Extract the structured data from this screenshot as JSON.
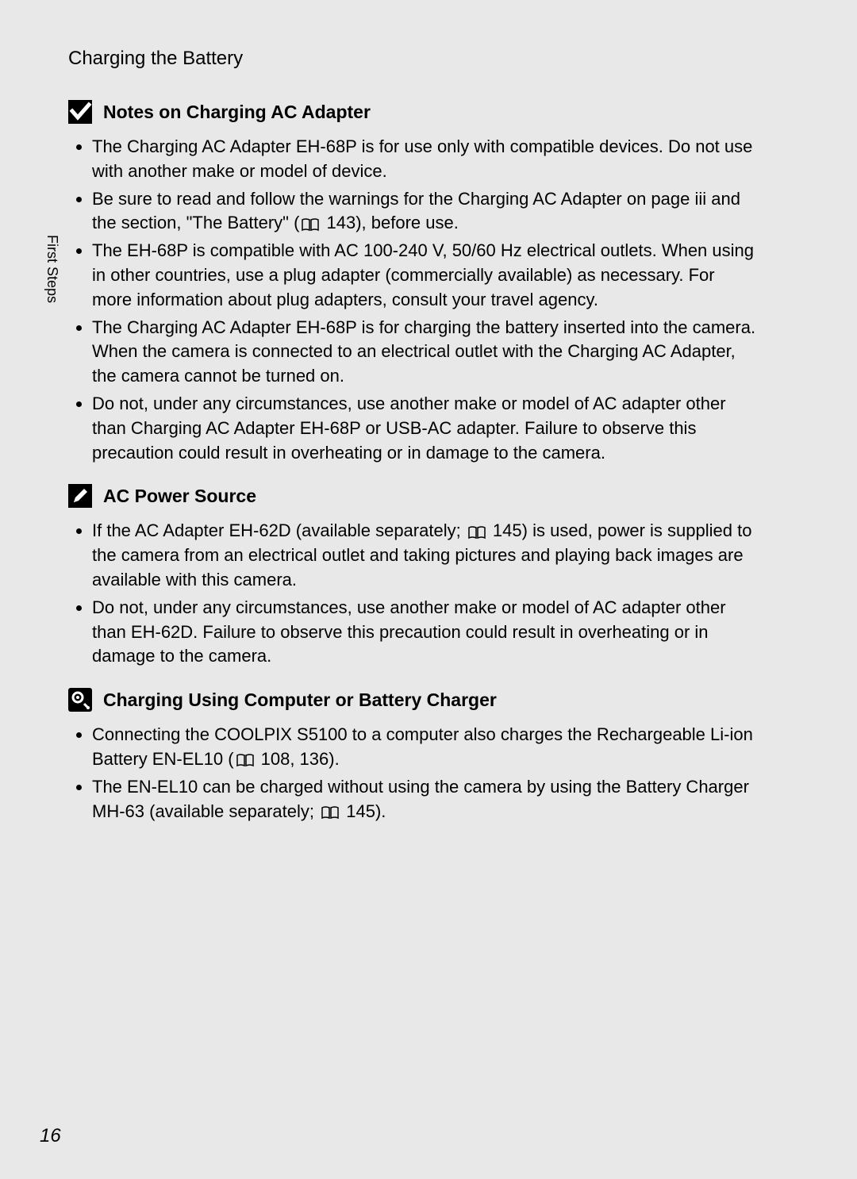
{
  "page_title": "Charging the Battery",
  "side_label": "First Steps",
  "page_number": "16",
  "colors": {
    "background": "#e8e8e8",
    "text": "#000000",
    "icon_bg": "#000000",
    "icon_fg": "#ffffff"
  },
  "typography": {
    "body_fontsize": 22,
    "title_fontsize": 24,
    "section_title_fontsize": 23,
    "side_label_fontsize": 18,
    "page_number_fontsize": 24
  },
  "sections": [
    {
      "icon": "checkbox-icon",
      "title": "Notes on Charging AC Adapter",
      "items": [
        {
          "text": "The Charging AC Adapter EH-68P is for use only with compatible devices. Do not use with another make or model of device."
        },
        {
          "text_parts": [
            "Be sure to read and follow the warnings for the Charging AC Adapter on page iii and the section, \"The Battery\" (",
            {
              "ref": "143"
            },
            "), before use."
          ]
        },
        {
          "text": "The EH-68P is compatible with AC 100-240 V, 50/60 Hz electrical outlets. When using in other countries, use a plug adapter (commercially available) as necessary. For more information about plug adapters, consult your travel agency."
        },
        {
          "text": "The Charging AC Adapter EH-68P is for charging the battery inserted into the camera. When the camera is connected to an electrical outlet with the Charging AC Adapter, the camera cannot be turned on."
        },
        {
          "text": "Do not, under any circumstances, use another make or model of AC adapter other than Charging AC Adapter EH-68P or USB-AC adapter. Failure to observe this precaution could result in overheating or in damage to the camera."
        }
      ]
    },
    {
      "icon": "pencil-icon",
      "title": "AC Power Source",
      "items": [
        {
          "text_parts": [
            "If the AC Adapter EH-62D (available separately; ",
            {
              "ref": "145"
            },
            ") is used, power is supplied to the camera from an electrical outlet and taking pictures and playing back images are available with this camera."
          ]
        },
        {
          "text": "Do not, under any circumstances, use another make or model of AC adapter other than EH-62D. Failure to observe this precaution could result in overheating or in damage to the camera."
        }
      ]
    },
    {
      "icon": "gear-icon",
      "title": "Charging Using Computer or Battery Charger",
      "items": [
        {
          "text_parts": [
            "Connecting the COOLPIX S5100 to a computer also charges the Rechargeable Li-ion Battery EN-EL10 (",
            {
              "ref": "108, 136"
            },
            ")."
          ]
        },
        {
          "text_parts": [
            "The EN-EL10 can be charged without using the camera by using the Battery Charger MH-63 (available separately; ",
            {
              "ref": "145"
            },
            ")."
          ]
        }
      ]
    }
  ]
}
